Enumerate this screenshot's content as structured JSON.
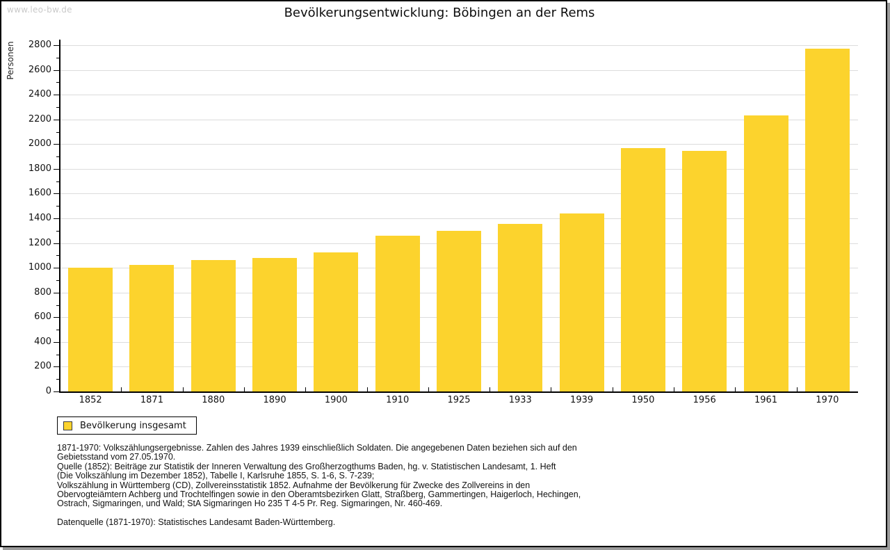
{
  "watermark": "www.leo-bw.de",
  "header": {
    "title": "Bevölkerungsentwicklung: Böbingen an der Rems"
  },
  "colors": {
    "bar": "#FCD32D",
    "grid": "#DCDCDC",
    "axis": "#000000",
    "watermark": "#CACACA"
  },
  "chart_data": {
    "type": "bar",
    "title": "Bevölkerungsentwicklung: Böbingen an der Rems",
    "xlabel": "",
    "ylabel": "Personen",
    "categories": [
      "1852",
      "1871",
      "1880",
      "1890",
      "1900",
      "1910",
      "1925",
      "1933",
      "1939",
      "1950",
      "1956",
      "1961",
      "1970"
    ],
    "series": [
      {
        "name": "Bevölkerung insgesamt",
        "values": [
          1000,
          1025,
          1065,
          1080,
          1125,
          1260,
          1300,
          1355,
          1440,
          1970,
          1945,
          2230,
          2770
        ]
      }
    ],
    "ylim": [
      0,
      2800
    ],
    "ytick_step": 200,
    "yminor_step": 100,
    "grid": "horizontal-major",
    "legend_position": "bottom-left",
    "bar_color": "#FCD32D"
  },
  "legend": {
    "label": "Bevölkerung insgesamt"
  },
  "footnotes": [
    "1871-1970: Volkszählungsergebnisse. Zahlen des Jahres 1939 einschließlich Soldaten. Die angegebenen Daten beziehen sich auf den",
    "Gebietsstand vom 27.05.1970.",
    "Quelle (1852): Beiträge zur Statistik der Inneren Verwaltung des Großherzogthums Baden, hg. v. Statistischen Landesamt, 1. Heft",
    "(Die Volkszählung im Dezember 1852), Tabelle I, Karlsruhe 1855, S. 1-6, S. 7-239;",
    "Volkszählung in Württemberg (CD), Zollvereinsstatistik 1852. Aufnahme der Bevölkerung für Zwecke des Zollvereins in den",
    "Obervogteiämtern Achberg und Trochtelfingen sowie in den Oberamtsbezirken Glatt, Straßberg, Gammertingen, Haigerloch, Hechingen,",
    "Ostrach, Sigmaringen, und Wald; StA Sigmaringen Ho 235 T 4-5 Pr. Reg. Sigmaringen, Nr. 460-469."
  ],
  "datasource": "Datenquelle (1871-1970): Statistisches Landesamt Baden-Württemberg."
}
